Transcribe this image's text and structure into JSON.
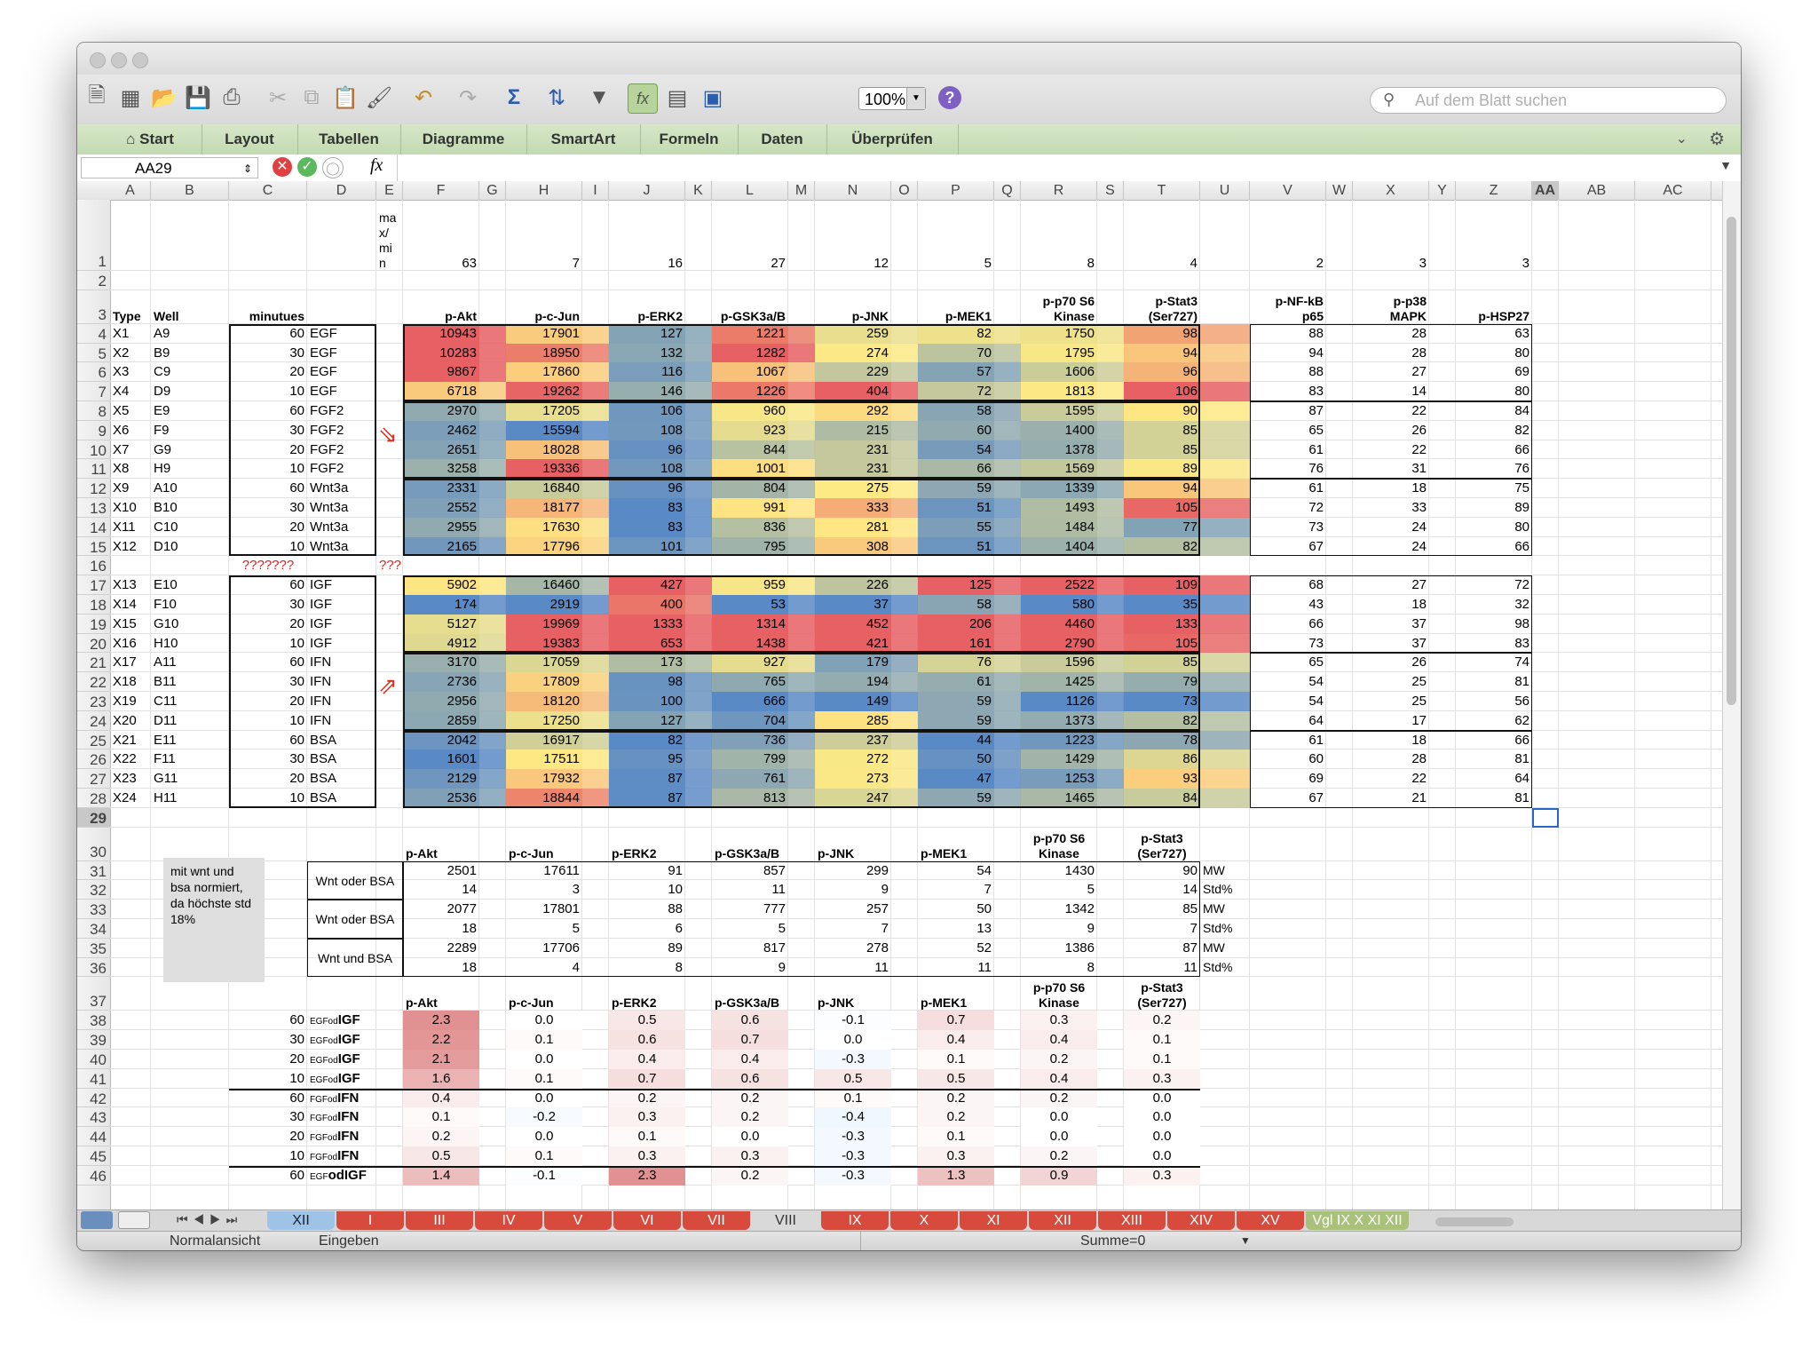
{
  "window": {
    "titlebar_buttons": [
      "close",
      "minimize",
      "zoom"
    ]
  },
  "toolbar": {
    "icons": [
      "new-workbook-icon",
      "templates-icon",
      "open-icon",
      "save-icon",
      "print-icon",
      "cut-icon",
      "copy-icon",
      "paste-icon",
      "format-painter-icon",
      "undo-icon",
      "redo-icon",
      "autosum-icon",
      "sort-icon",
      "filter-icon",
      "formula-builder-icon",
      "gallery-icon",
      "toolbox-icon"
    ],
    "zoom": "100%",
    "help": "?",
    "search_placeholder": "Auf dem Blatt suchen"
  },
  "ribbon": {
    "tabs": [
      "Start",
      "Layout",
      "Tabellen",
      "Diagramme",
      "SmartArt",
      "Formeln",
      "Daten",
      "Überprüfen"
    ]
  },
  "formula_bar": {
    "cell_ref": "AA29",
    "fx": "fx",
    "content": ""
  },
  "columns": [
    "A",
    "B",
    "C",
    "D",
    "E",
    "F",
    "G",
    "H",
    "I",
    "J",
    "K",
    "L",
    "M",
    "N",
    "O",
    "P",
    "Q",
    "R",
    "S",
    "T",
    "U",
    "V",
    "W",
    "X",
    "Y",
    "Z",
    "AA",
    "AB",
    "AC"
  ],
  "sheet": {
    "row1": {
      "E": "ma x/ mi n",
      "F": "63",
      "H": "7",
      "J": "16",
      "L": "27",
      "N": "12",
      "P": "5",
      "R": "8",
      "T": "4",
      "V": "2",
      "X": "3",
      "Z": "3"
    },
    "header_row3": {
      "A": "Type",
      "B": "Well",
      "C": "minutues",
      "F": "p-Akt",
      "H": "p-c-Jun",
      "J": "p-ERK2",
      "L": "p-GSK3a/B",
      "N": "p-JNK",
      "P": "p-MEK1",
      "R": "p-p70 S6 Kinase",
      "T": "p-Stat3 (Ser727)",
      "V": "p-NF-kB p65",
      "X": "p-p38 MAPK",
      "Z": "p-HSP27"
    },
    "data_rows": [
      {
        "r": "4",
        "A": "X1",
        "B": "A9",
        "C": "60",
        "D": "EGF",
        "F": "10943",
        "H": "17901",
        "J": "127",
        "L": "1221",
        "N": "259",
        "P": "82",
        "R": "1750",
        "T": "98",
        "V": "88",
        "X": "28",
        "Z": "63"
      },
      {
        "r": "5",
        "A": "X2",
        "B": "B9",
        "C": "30",
        "D": "EGF",
        "F": "10283",
        "H": "18950",
        "J": "132",
        "L": "1282",
        "N": "274",
        "P": "70",
        "R": "1795",
        "T": "94",
        "V": "94",
        "X": "28",
        "Z": "80"
      },
      {
        "r": "6",
        "A": "X3",
        "B": "C9",
        "C": "20",
        "D": "EGF",
        "F": "9867",
        "H": "17860",
        "J": "116",
        "L": "1067",
        "N": "229",
        "P": "57",
        "R": "1606",
        "T": "96",
        "V": "88",
        "X": "27",
        "Z": "69"
      },
      {
        "r": "7",
        "A": "X4",
        "B": "D9",
        "C": "10",
        "D": "EGF",
        "F": "6718",
        "H": "19262",
        "J": "146",
        "L": "1226",
        "N": "404",
        "P": "72",
        "R": "1813",
        "T": "106",
        "V": "83",
        "X": "14",
        "Z": "80"
      },
      {
        "r": "8",
        "A": "X5",
        "B": "E9",
        "C": "60",
        "D": "FGF2",
        "F": "2970",
        "H": "17205",
        "J": "106",
        "L": "960",
        "N": "292",
        "P": "58",
        "R": "1595",
        "T": "90",
        "V": "87",
        "X": "22",
        "Z": "84"
      },
      {
        "r": "9",
        "A": "X6",
        "B": "F9",
        "C": "30",
        "D": "FGF2",
        "F": "2462",
        "H": "15594",
        "J": "108",
        "L": "923",
        "N": "215",
        "P": "60",
        "R": "1400",
        "T": "85",
        "V": "65",
        "X": "26",
        "Z": "82"
      },
      {
        "r": "10",
        "A": "X7",
        "B": "G9",
        "C": "20",
        "D": "FGF2",
        "F": "2651",
        "H": "18028",
        "J": "96",
        "L": "844",
        "N": "231",
        "P": "54",
        "R": "1378",
        "T": "85",
        "V": "61",
        "X": "22",
        "Z": "66"
      },
      {
        "r": "11",
        "A": "X8",
        "B": "H9",
        "C": "10",
        "D": "FGF2",
        "F": "3258",
        "H": "19336",
        "J": "108",
        "L": "1001",
        "N": "231",
        "P": "66",
        "R": "1569",
        "T": "89",
        "V": "76",
        "X": "31",
        "Z": "76"
      },
      {
        "r": "12",
        "A": "X9",
        "B": "A10",
        "C": "60",
        "D": "Wnt3a",
        "F": "2331",
        "H": "16840",
        "J": "96",
        "L": "804",
        "N": "275",
        "P": "59",
        "R": "1339",
        "T": "94",
        "V": "61",
        "X": "18",
        "Z": "75"
      },
      {
        "r": "13",
        "A": "X10",
        "B": "B10",
        "C": "30",
        "D": "Wnt3a",
        "F": "2552",
        "H": "18177",
        "J": "83",
        "L": "991",
        "N": "333",
        "P": "51",
        "R": "1493",
        "T": "105",
        "V": "72",
        "X": "33",
        "Z": "89"
      },
      {
        "r": "14",
        "A": "X11",
        "B": "C10",
        "C": "20",
        "D": "Wnt3a",
        "F": "2955",
        "H": "17630",
        "J": "83",
        "L": "836",
        "N": "281",
        "P": "55",
        "R": "1484",
        "T": "77",
        "V": "73",
        "X": "24",
        "Z": "80"
      },
      {
        "r": "15",
        "A": "X12",
        "B": "D10",
        "C": "10",
        "D": "Wnt3a",
        "F": "2165",
        "H": "17796",
        "J": "101",
        "L": "795",
        "N": "308",
        "P": "51",
        "R": "1404",
        "T": "82",
        "V": "67",
        "X": "24",
        "Z": "66"
      },
      {
        "r": "16",
        "C": "???????",
        "E": "???"
      },
      {
        "r": "17",
        "A": "X13",
        "B": "E10",
        "C": "60",
        "D": "IGF",
        "F": "5902",
        "H": "16460",
        "J": "427",
        "L": "959",
        "N": "226",
        "P": "125",
        "R": "2522",
        "T": "109",
        "V": "68",
        "X": "27",
        "Z": "72"
      },
      {
        "r": "18",
        "A": "X14",
        "B": "F10",
        "C": "30",
        "D": "IGF",
        "F": "174",
        "H": "2919",
        "J": "400",
        "L": "53",
        "N": "37",
        "P": "58",
        "R": "580",
        "T": "35",
        "V": "43",
        "X": "18",
        "Z": "32"
      },
      {
        "r": "19",
        "A": "X15",
        "B": "G10",
        "C": "20",
        "D": "IGF",
        "F": "5127",
        "H": "19969",
        "J": "1333",
        "L": "1314",
        "N": "452",
        "P": "206",
        "R": "4460",
        "T": "133",
        "V": "66",
        "X": "37",
        "Z": "98"
      },
      {
        "r": "20",
        "A": "X16",
        "B": "H10",
        "C": "10",
        "D": "IGF",
        "F": "4912",
        "H": "19383",
        "J": "653",
        "L": "1438",
        "N": "421",
        "P": "161",
        "R": "2790",
        "T": "105",
        "V": "73",
        "X": "37",
        "Z": "83"
      },
      {
        "r": "21",
        "A": "X17",
        "B": "A11",
        "C": "60",
        "D": "IFN",
        "F": "3170",
        "H": "17059",
        "J": "173",
        "L": "927",
        "N": "179",
        "P": "76",
        "R": "1596",
        "T": "85",
        "V": "65",
        "X": "26",
        "Z": "74"
      },
      {
        "r": "22",
        "A": "X18",
        "B": "B11",
        "C": "30",
        "D": "IFN",
        "F": "2736",
        "H": "17809",
        "J": "98",
        "L": "765",
        "N": "194",
        "P": "61",
        "R": "1425",
        "T": "79",
        "V": "54",
        "X": "25",
        "Z": "81"
      },
      {
        "r": "23",
        "A": "X19",
        "B": "C11",
        "C": "20",
        "D": "IFN",
        "F": "2956",
        "H": "18120",
        "J": "100",
        "L": "666",
        "N": "149",
        "P": "59",
        "R": "1126",
        "T": "73",
        "V": "54",
        "X": "25",
        "Z": "56"
      },
      {
        "r": "24",
        "A": "X20",
        "B": "D11",
        "C": "10",
        "D": "IFN",
        "F": "2859",
        "H": "17250",
        "J": "127",
        "L": "704",
        "N": "285",
        "P": "59",
        "R": "1373",
        "T": "82",
        "V": "64",
        "X": "17",
        "Z": "62"
      },
      {
        "r": "25",
        "A": "X21",
        "B": "E11",
        "C": "60",
        "D": "BSA",
        "F": "2042",
        "H": "16917",
        "J": "82",
        "L": "736",
        "N": "237",
        "P": "44",
        "R": "1223",
        "T": "78",
        "V": "61",
        "X": "18",
        "Z": "66"
      },
      {
        "r": "26",
        "A": "X22",
        "B": "F11",
        "C": "30",
        "D": "BSA",
        "F": "1601",
        "H": "17511",
        "J": "95",
        "L": "799",
        "N": "272",
        "P": "50",
        "R": "1429",
        "T": "86",
        "V": "60",
        "X": "28",
        "Z": "81"
      },
      {
        "r": "27",
        "A": "X23",
        "B": "G11",
        "C": "20",
        "D": "BSA",
        "F": "2129",
        "H": "17932",
        "J": "87",
        "L": "761",
        "N": "273",
        "P": "47",
        "R": "1253",
        "T": "93",
        "V": "69",
        "X": "22",
        "Z": "64"
      },
      {
        "r": "28",
        "A": "X24",
        "B": "H11",
        "C": "10",
        "D": "BSA",
        "F": "2536",
        "H": "18844",
        "J": "87",
        "L": "813",
        "N": "247",
        "P": "59",
        "R": "1465",
        "T": "84",
        "V": "67",
        "X": "21",
        "Z": "81"
      }
    ],
    "summary_header": {
      "F": "p-Akt",
      "H": "p-c-Jun",
      "J": "p-ERK2",
      "L": "p-GSK3a/B",
      "N": "p-JNK",
      "P": "p-MEK1",
      "R": "p-p70 S6 Kinase",
      "T": "p-Stat3 (Ser727)"
    },
    "summary_note": "mit wnt und bsa normiert, da höchste std 18%",
    "summary_rows": [
      {
        "r": "31",
        "D": "Wnt oder BSA",
        "F": "2501",
        "H": "17611",
        "J": "91",
        "L": "857",
        "N": "299",
        "P": "54",
        "R": "1430",
        "T": "90",
        "U": "MW"
      },
      {
        "r": "32",
        "F": "14",
        "H": "3",
        "J": "10",
        "L": "11",
        "N": "9",
        "P": "7",
        "R": "5",
        "T": "14",
        "U": "Std%"
      },
      {
        "r": "33",
        "D": "Wnt oder BSA",
        "F": "2077",
        "H": "17801",
        "J": "88",
        "L": "777",
        "N": "257",
        "P": "50",
        "R": "1342",
        "T": "85",
        "U": "MW"
      },
      {
        "r": "34",
        "F": "18",
        "H": "5",
        "J": "6",
        "L": "5",
        "N": "7",
        "P": "13",
        "R": "9",
        "T": "7",
        "U": "Std%"
      },
      {
        "r": "35",
        "D": "Wnt und BSA",
        "F": "2289",
        "H": "17706",
        "J": "89",
        "L": "817",
        "N": "278",
        "P": "52",
        "R": "1386",
        "T": "87",
        "U": "MW"
      },
      {
        "r": "36",
        "F": "18",
        "H": "4",
        "J": "8",
        "L": "9",
        "N": "11",
        "P": "11",
        "R": "8",
        "T": "11",
        "U": "Std%"
      }
    ],
    "fold_header": {
      "F": "p-Akt",
      "H": "p-c-Jun",
      "J": "p-ERK2",
      "L": "p-GSK3a/B",
      "N": "p-JNK",
      "P": "p-MEK1",
      "R": "p-p70 S6 Kinase",
      "T": "p-Stat3 (Ser727)"
    },
    "fold_rows": [
      {
        "r": "38",
        "C": "60",
        "D1": "EGFod",
        "D2": "IGF",
        "F": "2.3",
        "H": "0.0",
        "J": "0.5",
        "L": "0.6",
        "N": "-0.1",
        "P": "0.7",
        "R": "0.3",
        "T": "0.2"
      },
      {
        "r": "39",
        "C": "30",
        "D1": "EGFod",
        "D2": "IGF",
        "F": "2.2",
        "H": "0.1",
        "J": "0.6",
        "L": "0.7",
        "N": "0.0",
        "P": "0.4",
        "R": "0.4",
        "T": "0.1"
      },
      {
        "r": "40",
        "C": "20",
        "D1": "EGFod",
        "D2": "IGF",
        "F": "2.1",
        "H": "0.0",
        "J": "0.4",
        "L": "0.4",
        "N": "-0.3",
        "P": "0.1",
        "R": "0.2",
        "T": "0.1"
      },
      {
        "r": "41",
        "C": "10",
        "D1": "EGFod",
        "D2": "IGF",
        "F": "1.6",
        "H": "0.1",
        "J": "0.7",
        "L": "0.6",
        "N": "0.5",
        "P": "0.5",
        "R": "0.4",
        "T": "0.3"
      },
      {
        "r": "42",
        "C": "60",
        "D1": "FGFod",
        "D2": "IFN",
        "F": "0.4",
        "H": "0.0",
        "J": "0.2",
        "L": "0.2",
        "N": "0.1",
        "P": "0.2",
        "R": "0.2",
        "T": "0.0"
      },
      {
        "r": "43",
        "C": "30",
        "D1": "FGFod",
        "D2": "IFN",
        "F": "0.1",
        "H": "-0.2",
        "J": "0.3",
        "L": "0.2",
        "N": "-0.4",
        "P": "0.2",
        "R": "0.0",
        "T": "0.0"
      },
      {
        "r": "44",
        "C": "20",
        "D1": "FGFod",
        "D2": "IFN",
        "F": "0.2",
        "H": "0.0",
        "J": "0.1",
        "L": "0.0",
        "N": "-0.3",
        "P": "0.1",
        "R": "0.0",
        "T": "0.0"
      },
      {
        "r": "45",
        "C": "10",
        "D1": "FGFod",
        "D2": "IFN",
        "F": "0.5",
        "H": "0.1",
        "J": "0.3",
        "L": "0.3",
        "N": "-0.3",
        "P": "0.3",
        "R": "0.2",
        "T": "0.0"
      },
      {
        "r": "46",
        "C": "60",
        "D1": "EGF",
        "D2": "odIGF",
        "F": "1.4",
        "H": "-0.1",
        "J": "2.3",
        "L": "0.2",
        "N": "-0.3",
        "P": "1.3",
        "R": "0.9",
        "T": "0.3"
      }
    ],
    "row_numbers": [
      "1",
      "2",
      "3",
      "4",
      "5",
      "6",
      "7",
      "8",
      "9",
      "10",
      "11",
      "12",
      "13",
      "14",
      "15",
      "16",
      "17",
      "18",
      "19",
      "20",
      "21",
      "22",
      "23",
      "24",
      "25",
      "26",
      "27",
      "28",
      "29",
      "30",
      "31",
      "32",
      "33",
      "34",
      "35",
      "36",
      "37",
      "38",
      "39",
      "40",
      "41",
      "42",
      "43",
      "44",
      "45",
      "46"
    ]
  },
  "sheet_tabs": [
    {
      "label": "XII",
      "color": "#9ec3e6"
    },
    {
      "label": "I",
      "color": "#d84a3c"
    },
    {
      "label": "III",
      "color": "#d84a3c"
    },
    {
      "label": "IV",
      "color": "#d84a3c"
    },
    {
      "label": "V",
      "color": "#d84a3c"
    },
    {
      "label": "VI",
      "color": "#d84a3c"
    },
    {
      "label": "VII",
      "color": "#d84a3c"
    },
    {
      "label": "VIII",
      "color": "#d9d9d9"
    },
    {
      "label": "IX",
      "color": "#d84a3c"
    },
    {
      "label": "X",
      "color": "#d84a3c"
    },
    {
      "label": "XI",
      "color": "#d84a3c"
    },
    {
      "label": "XII",
      "color": "#d84a3c"
    },
    {
      "label": "XIII",
      "color": "#d84a3c"
    },
    {
      "label": "XIV",
      "color": "#d84a3c"
    },
    {
      "label": "XV",
      "color": "#d84a3c"
    },
    {
      "label": "Vgl IX X XI XII",
      "color": "#a8c27a"
    }
  ],
  "status": {
    "view": "Normalansicht",
    "mode": "Eingeben",
    "sum": "Summe=0"
  }
}
